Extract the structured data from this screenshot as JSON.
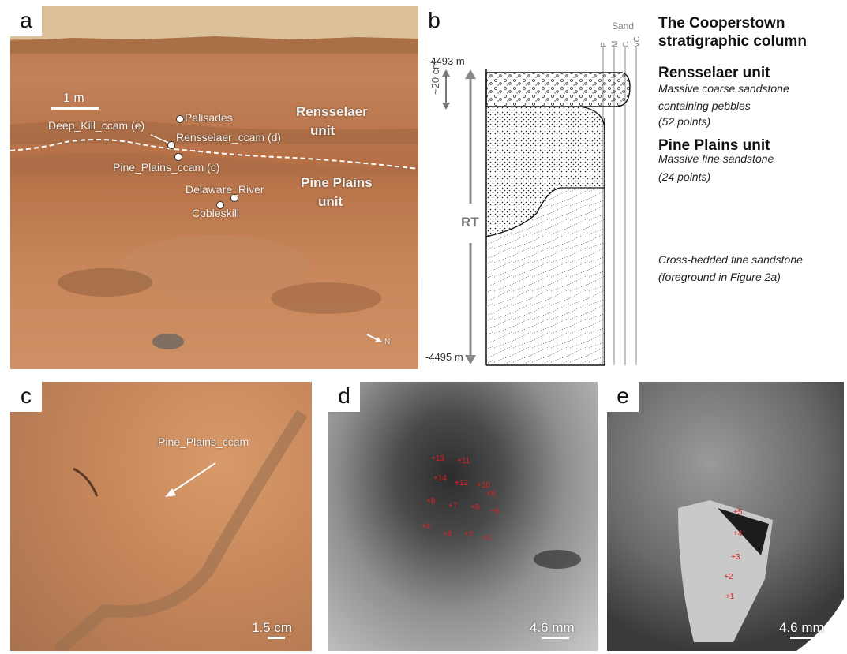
{
  "panels": {
    "a": {
      "label": "a",
      "scale": "1 m",
      "north": "N",
      "units": [
        "Rensselaer unit",
        "Pine Plains unit"
      ],
      "targets": [
        "Palisades",
        "Deep_Kill_ccam (e)",
        "Rensselaer_ccam (d)",
        "Pine_Plains_ccam (c)",
        "Delaware_River",
        "Cobleskill"
      ]
    },
    "b": {
      "label": "b",
      "top_elevation": "-4493 m",
      "bottom_elevation": "-4495 m",
      "thickness": "~20 cm",
      "rt": "RT",
      "grain_header": "Sand",
      "grain_sizes": [
        "F",
        "M",
        "C",
        "VC"
      ],
      "title": "The Cooperstown stratigraphic column",
      "units": [
        {
          "name": "Rensselaer unit",
          "desc1": "Massive coarse sandstone",
          "desc2": "containing pebbles",
          "desc3": "(52 points)"
        },
        {
          "name": "Pine Plains unit",
          "desc1": "Massive fine sandstone",
          "desc2": "(24 points)"
        }
      ],
      "crossbed1": "Cross-bedded fine sandstone",
      "crossbed2": "(foreground in Figure 2a)"
    },
    "c": {
      "label": "c",
      "target": "Pine_Plains_ccam",
      "scale": "1.5 cm"
    },
    "d": {
      "label": "d",
      "scale": "4.6 mm",
      "points": [
        "13",
        "11",
        "14",
        "12",
        "10",
        "8",
        "9",
        "7",
        "6",
        "5",
        "4",
        "3",
        "2",
        "1"
      ]
    },
    "e": {
      "label": "e",
      "scale": "4.6 mm",
      "points": [
        "5",
        "4",
        "3",
        "2",
        "1"
      ]
    }
  },
  "colors": {
    "laser_points": "#e02020"
  }
}
